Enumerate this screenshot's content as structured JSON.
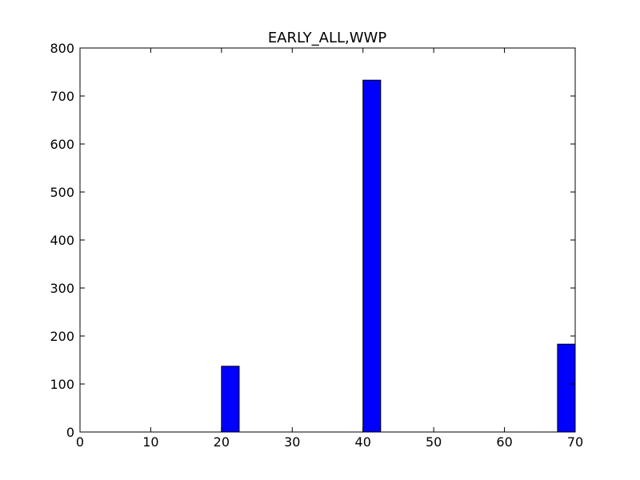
{
  "chart_data": {
    "type": "bar",
    "title": "EARLY_ALL,WWP",
    "xlabel": "",
    "ylabel": "",
    "xlim": [
      0,
      70
    ],
    "ylim": [
      0,
      800
    ],
    "x_ticks": [
      0,
      10,
      20,
      30,
      40,
      50,
      60,
      70
    ],
    "y_ticks": [
      0,
      100,
      200,
      300,
      400,
      500,
      600,
      700,
      800
    ],
    "bar_width": 2.5,
    "bars": [
      {
        "x": 20,
        "value": 137
      },
      {
        "x": 40,
        "value": 733
      },
      {
        "x": 67.5,
        "value": 183
      }
    ],
    "grid": false,
    "bar_color": "#0000ff",
    "edge_color": "#000000"
  }
}
